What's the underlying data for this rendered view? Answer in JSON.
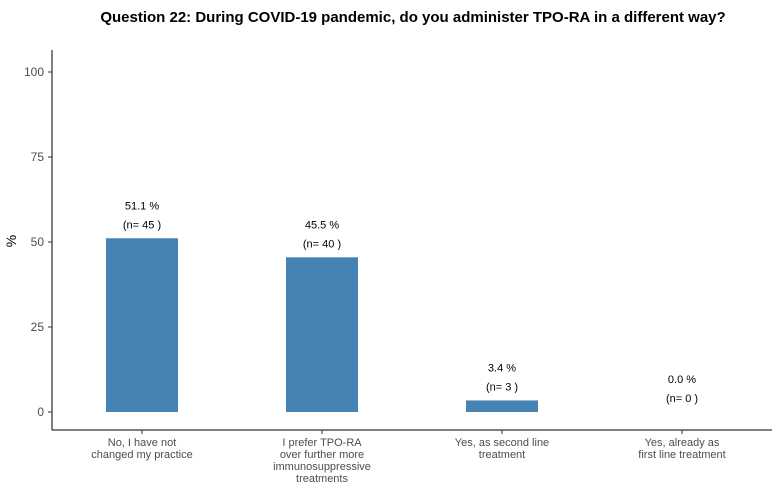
{
  "chart_data": {
    "type": "bar",
    "title": "Question 22: During COVID-19 pandemic, do you administer TPO-RA in a different way?",
    "xlabel": "",
    "ylabel": "%",
    "ylim": [
      0,
      100
    ],
    "yticks": [
      0,
      25,
      50,
      75,
      100
    ],
    "grid": false,
    "bar_color": "#4682b4",
    "categories": [
      [
        "No, I have not",
        "changed my practice"
      ],
      [
        "I prefer TPO-RA",
        "over further more",
        "immunosuppressive",
        "treatments"
      ],
      [
        "Yes, as second line",
        "treatment"
      ],
      [
        "Yes, already as",
        "first line treatment"
      ]
    ],
    "values": [
      51.1,
      45.5,
      3.4,
      0.0
    ],
    "percent_labels": [
      "51.1 %",
      "45.5 %",
      "3.4 %",
      "0.0 %"
    ],
    "count_labels": [
      "(n= 45 )",
      "(n= 40 )",
      "(n= 3 )",
      "(n= 0 )"
    ]
  }
}
